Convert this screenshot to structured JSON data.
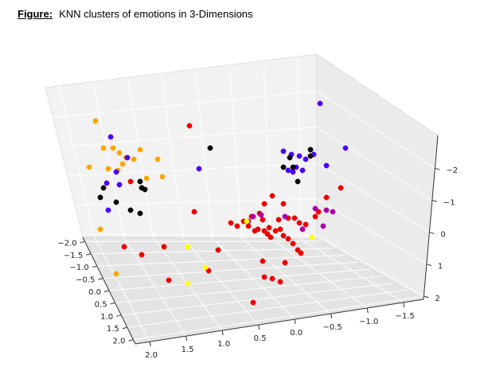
{
  "caption": {
    "label": "Figure:",
    "text": "KNN clusters of emotions in 3-Dimensions"
  },
  "chart_data": {
    "type": "scatter3d",
    "title": "",
    "xlabel": "",
    "ylabel": "",
    "zlabel": "",
    "x_ticks": [
      "−2.0",
      "−1.5",
      "−1.0",
      "−0.5",
      "0.0",
      "0.5",
      "1.0",
      "1.5",
      "2.0"
    ],
    "y_ticks": [
      "2.0",
      "1.5",
      "1.0",
      "0.5",
      "0.0",
      "−0.5",
      "−1.0",
      "−1.5"
    ],
    "z_ticks": [
      "−2",
      "−1",
      "0",
      "1",
      "2"
    ],
    "grid": true,
    "cluster_colors": {
      "orange": "#ffa500",
      "blue": "#4b00ff",
      "black": "#000000",
      "red": "#ee0000",
      "purple": "#aa00aa",
      "yellow": "#ffff00"
    },
    "series": [
      {
        "color": "orange",
        "points": [
          [
            120,
            152
          ],
          [
            130,
            186
          ],
          [
            142,
            186
          ],
          [
            150,
            192
          ],
          [
            158,
            198
          ],
          [
            168,
            200
          ],
          [
            176,
            188
          ],
          [
            112,
            210
          ],
          [
            136,
            212
          ],
          [
            154,
            206
          ],
          [
            148,
            214
          ],
          [
            184,
            224
          ],
          [
            198,
            200
          ],
          [
            204,
            222
          ],
          [
            126,
            288
          ],
          [
            146,
            344
          ]
        ]
      },
      {
        "color": "blue",
        "points": [
          [
            139,
            172
          ],
          [
            160,
            198
          ],
          [
            146,
            216
          ],
          [
            150,
            232
          ],
          [
            134,
            230
          ],
          [
            250,
            212
          ],
          [
            136,
            264
          ],
          [
            402,
            130
          ],
          [
            434,
            186
          ],
          [
            356,
            190
          ],
          [
            366,
            194
          ],
          [
            376,
            196
          ],
          [
            384,
            200
          ],
          [
            394,
            194
          ],
          [
            410,
            208
          ],
          [
            372,
            210
          ],
          [
            380,
            214
          ],
          [
            362,
            214
          ],
          [
            368,
            216
          ]
        ]
      },
      {
        "color": "black",
        "points": [
          [
            264,
            186
          ],
          [
            390,
            188
          ],
          [
            390,
            196
          ],
          [
            364,
            198
          ],
          [
            126,
            248
          ],
          [
            130,
            236
          ],
          [
            146,
            254
          ],
          [
            176,
            228
          ],
          [
            178,
            236
          ],
          [
            182,
            238
          ],
          [
            176,
            268
          ],
          [
            164,
            264
          ],
          [
            356,
            210
          ],
          [
            368,
            210
          ],
          [
            374,
            228
          ]
        ]
      },
      {
        "color": "red",
        "points": [
          [
            238,
            158
          ],
          [
            164,
            228
          ],
          [
            428,
            236
          ],
          [
            342,
            246
          ],
          [
            356,
            256
          ],
          [
            332,
            256
          ],
          [
            410,
            248
          ],
          [
            244,
            266
          ],
          [
            290,
            280
          ],
          [
            306,
            278
          ],
          [
            298,
            284
          ],
          [
            316,
            272
          ],
          [
            326,
            268
          ],
          [
            330,
            276
          ],
          [
            338,
            286
          ],
          [
            350,
            276
          ],
          [
            362,
            274
          ],
          [
            370,
            274
          ],
          [
            376,
            280
          ],
          [
            384,
            282
          ],
          [
            396,
            272
          ],
          [
            400,
            266
          ],
          [
            312,
            284
          ],
          [
            320,
            290
          ],
          [
            324,
            288
          ],
          [
            332,
            290
          ],
          [
            336,
            294
          ],
          [
            340,
            298
          ],
          [
            346,
            290
          ],
          [
            352,
            288
          ],
          [
            356,
            296
          ],
          [
            362,
            300
          ],
          [
            368,
            306
          ],
          [
            374,
            314
          ],
          [
            378,
            318
          ],
          [
            156,
            310
          ],
          [
            178,
            320
          ],
          [
            206,
            310
          ],
          [
            274,
            314
          ],
          [
            330,
            328
          ],
          [
            358,
            330
          ],
          [
            212,
            352
          ],
          [
            262,
            340
          ],
          [
            332,
            348
          ],
          [
            342,
            350
          ],
          [
            352,
            354
          ],
          [
            318,
            380
          ]
        ]
      },
      {
        "color": "purple",
        "points": [
          [
            312,
            278
          ],
          [
            318,
            272
          ],
          [
            328,
            270
          ],
          [
            358,
            272
          ],
          [
            396,
            262
          ],
          [
            410,
            264
          ],
          [
            418,
            266
          ],
          [
            406,
            284
          ],
          [
            380,
            288
          ]
        ]
      },
      {
        "color": "yellow",
        "points": [
          [
            310,
            278
          ],
          [
            236,
            310
          ],
          [
            258,
            336
          ],
          [
            236,
            356
          ],
          [
            392,
            298
          ]
        ]
      }
    ]
  }
}
